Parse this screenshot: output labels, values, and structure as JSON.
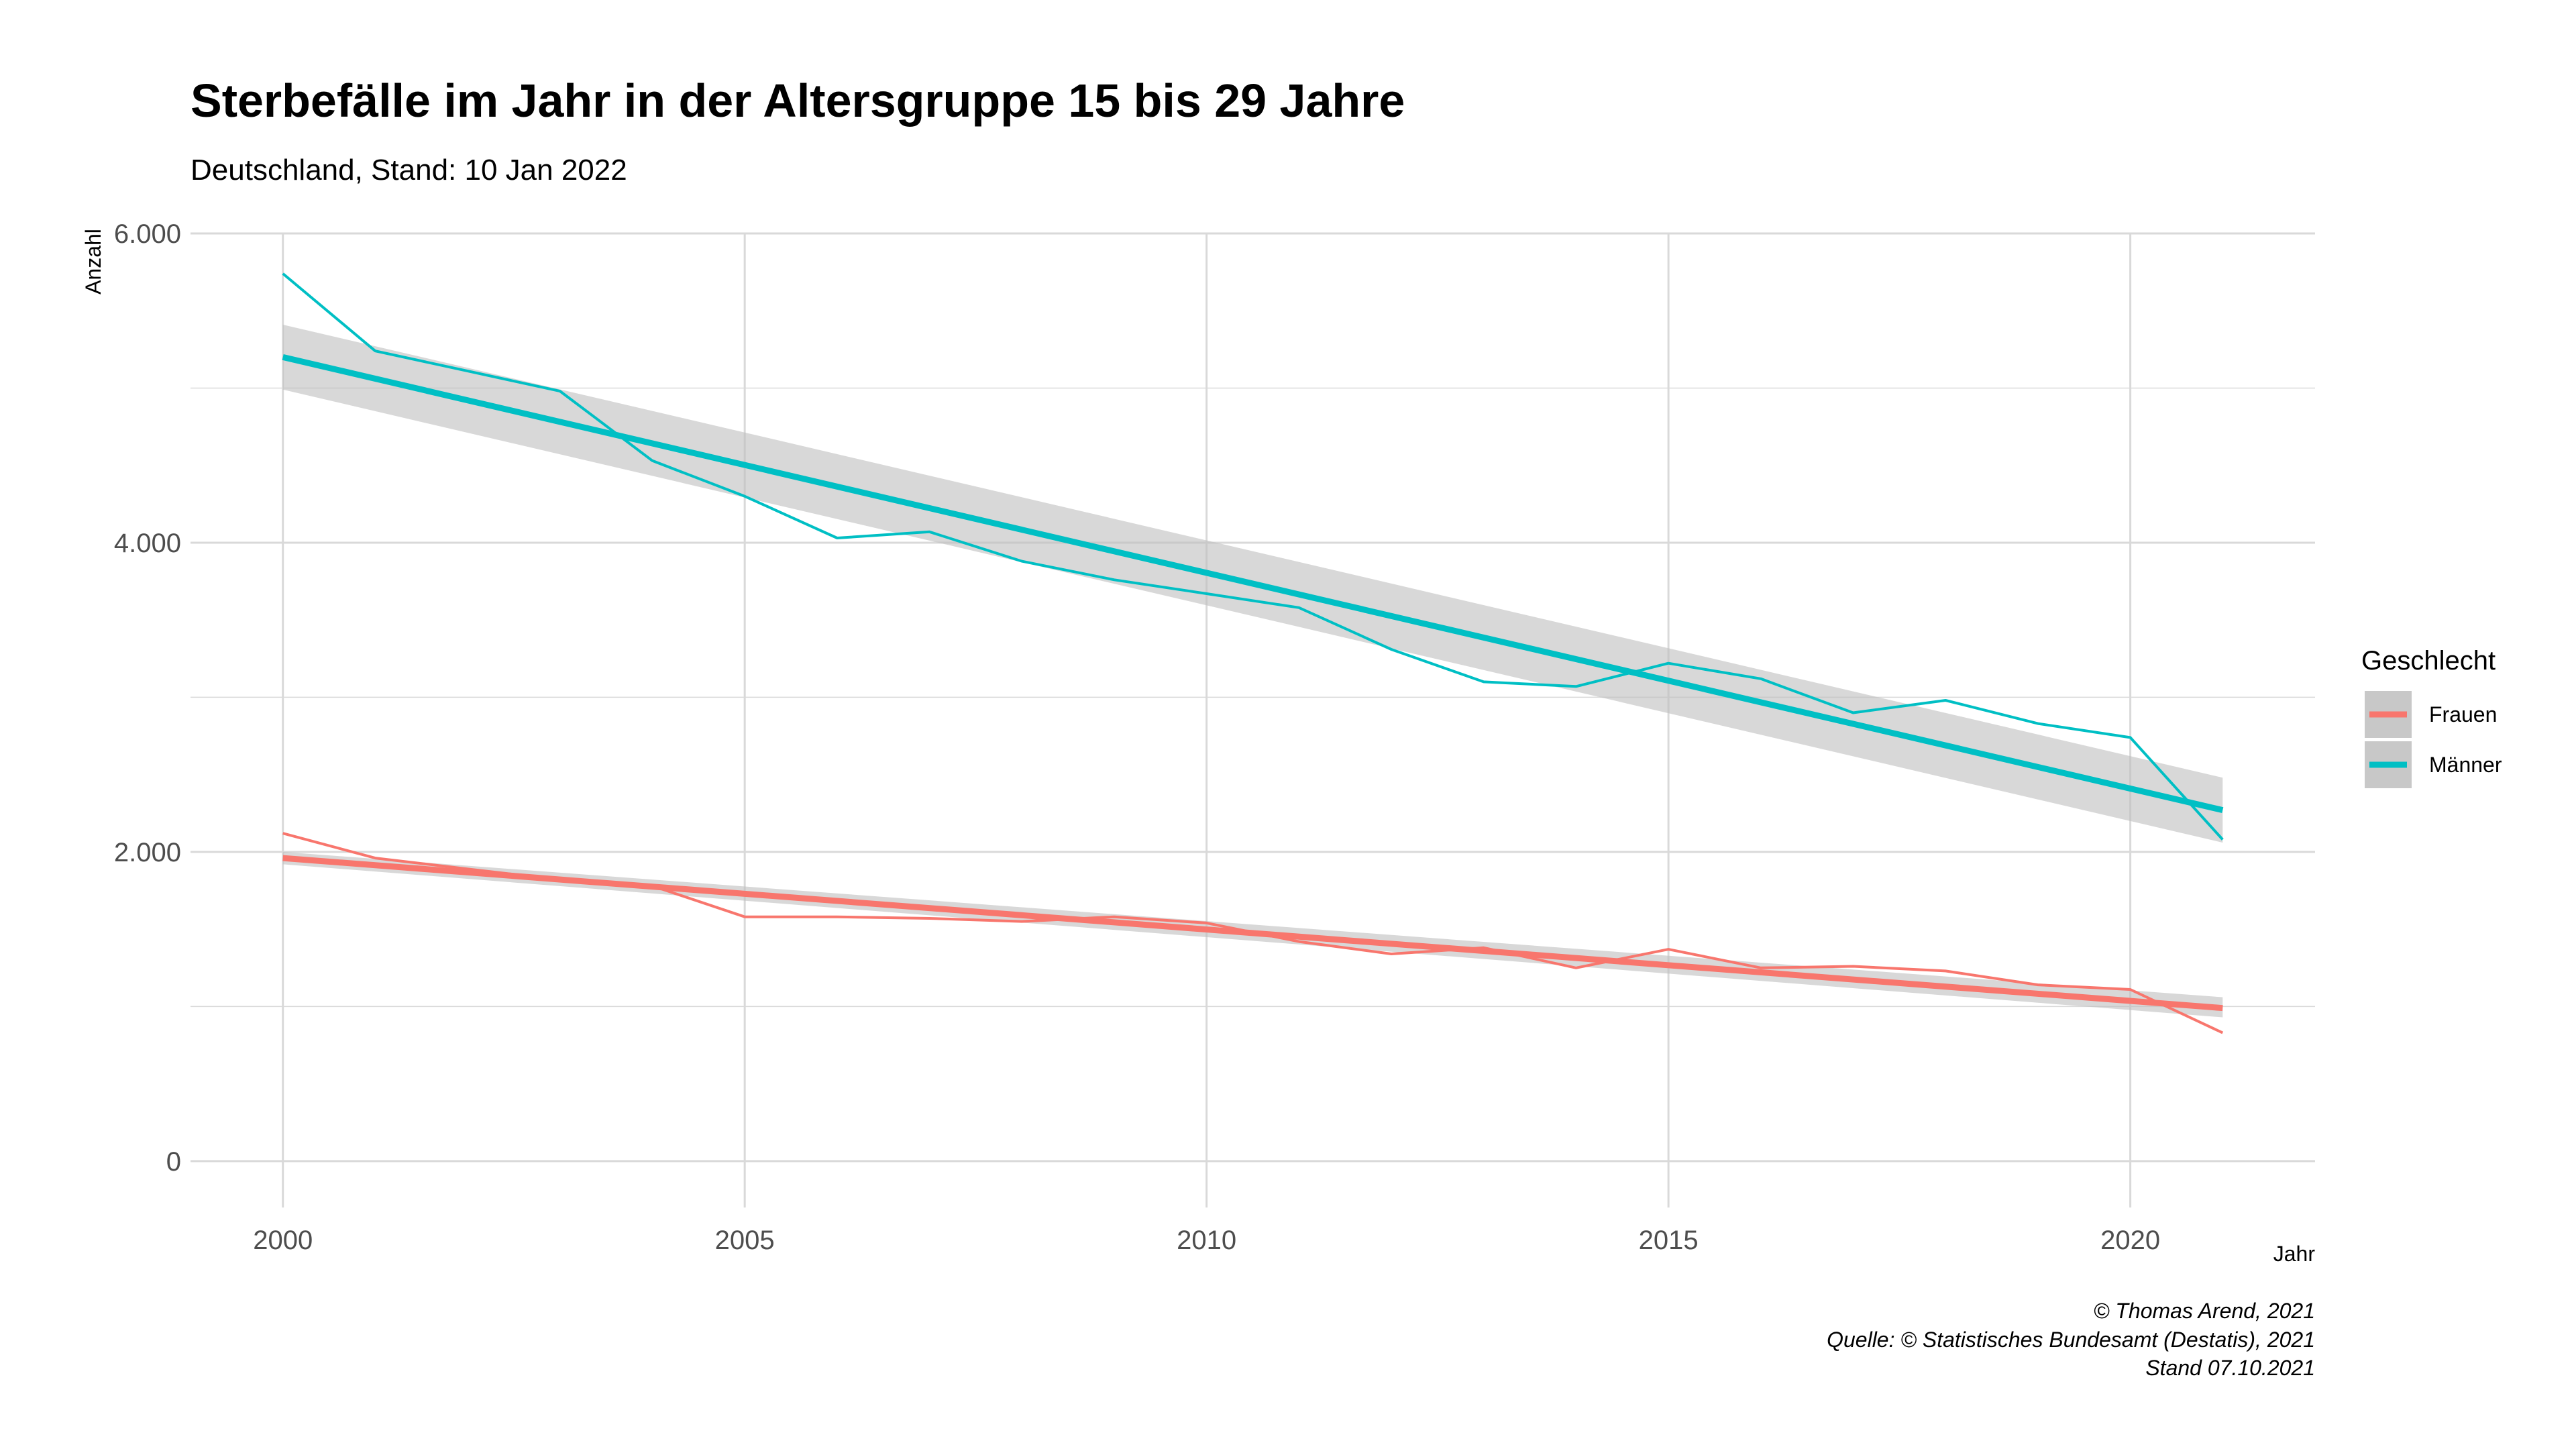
{
  "chart_data": {
    "type": "line",
    "title": "Sterbefälle im Jahr in der Altersgruppe 15 bis 29 Jahre",
    "subtitle": "Deutschland, Stand: 10 Jan 2022",
    "xlabel": "Jahr",
    "ylabel": "Anzahl",
    "xlim": [
      1999,
      2022
    ],
    "ylim": [
      -300,
      6000
    ],
    "x_ticks": [
      2000,
      2005,
      2010,
      2015,
      2020
    ],
    "x_tick_labels": [
      "2000",
      "2005",
      "2010",
      "2015",
      "2020"
    ],
    "y_ticks": [
      0,
      2000,
      4000,
      6000
    ],
    "y_tick_labels": [
      "0",
      "2.000",
      "4.000",
      "6.000"
    ],
    "y_minor_ticks": [
      1000,
      3000,
      5000
    ],
    "grid": true,
    "legend": {
      "title": "Geschlecht",
      "position": "right",
      "entries": [
        "Frauen",
        "Männer"
      ]
    },
    "x": [
      2000,
      2001,
      2002,
      2003,
      2004,
      2005,
      2006,
      2007,
      2008,
      2009,
      2010,
      2011,
      2012,
      2013,
      2014,
      2015,
      2016,
      2017,
      2018,
      2019,
      2020,
      2021
    ],
    "series": [
      {
        "name": "Frauen",
        "color": "#F8766D",
        "values": [
          2120,
          1960,
          1890,
          1820,
          1780,
          1580,
          1580,
          1570,
          1550,
          1580,
          1540,
          1420,
          1340,
          1380,
          1250,
          1370,
          1250,
          1260,
          1230,
          1140,
          1110,
          830
        ],
        "trend": {
          "start": 1960,
          "end": 990,
          "ci_start": [
            1920,
            2000
          ],
          "ci_end": [
            930,
            1060
          ]
        }
      },
      {
        "name": "Männer",
        "color": "#00BFC4",
        "values": [
          5740,
          5240,
          5110,
          4980,
          4530,
          4300,
          4030,
          4070,
          3880,
          3760,
          3670,
          3580,
          3310,
          3100,
          3070,
          3220,
          3120,
          2900,
          2980,
          2830,
          2740,
          2080
        ],
        "trend": {
          "start": 5200,
          "end": 2270,
          "ci_start": [
            4990,
            5410
          ],
          "ci_end": [
            2060,
            2480
          ]
        }
      }
    ]
  },
  "caption": {
    "line1": "© Thomas Arend, 2021",
    "line2": "Quelle: © Statistisches Bundesamt (Destatis), 2021",
    "line3": "Stand 07.10.2021"
  },
  "colors": {
    "ci_band": "#BEBEBE",
    "grid": "#D9D9D9",
    "legend_key_bg": "#C8C8C8"
  }
}
